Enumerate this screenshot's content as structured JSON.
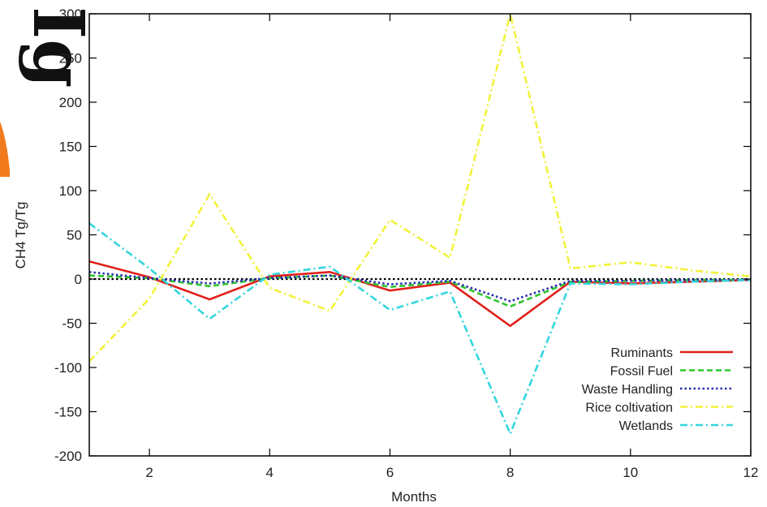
{
  "chart_data": {
    "type": "line",
    "title": "",
    "xlabel": "Months",
    "ylabel": "CH4 Tg/Tg",
    "xlim": [
      1,
      12
    ],
    "ylim": [
      -200,
      300
    ],
    "x_ticks": [
      2,
      4,
      6,
      8,
      10,
      12
    ],
    "y_ticks": [
      -200,
      -150,
      -100,
      -50,
      0,
      50,
      100,
      150,
      200,
      250,
      300
    ],
    "grid": false,
    "legend_position": "bottom-right",
    "x": [
      1,
      2,
      3,
      4,
      5,
      6,
      7,
      8,
      9,
      10,
      11,
      12
    ],
    "series": [
      {
        "name": "Ruminants",
        "color": "#e0201b",
        "dash": "solid",
        "values": [
          20,
          2,
          -23,
          3,
          8,
          -13,
          -4,
          -53,
          -3,
          -5,
          -3,
          -1
        ]
      },
      {
        "name": "Fossil Fuel",
        "color": "#2ec52e",
        "dash": "dashed",
        "values": [
          4,
          1,
          -8,
          1,
          4,
          -9,
          -3,
          -31,
          -3,
          -2,
          -1,
          -1
        ]
      },
      {
        "name": "Waste Handling",
        "color": "#2b2bb0",
        "dash": "dotted",
        "values": [
          8,
          1,
          -5,
          1,
          4,
          -6,
          -2,
          -25,
          -2,
          -2,
          -1,
          -1
        ]
      },
      {
        "name": "Rice coltivation",
        "color": "#f2f23a",
        "dash": "dashdot",
        "values": [
          -93,
          -22,
          96,
          -10,
          -36,
          67,
          24,
          300,
          12,
          19,
          10,
          3
        ]
      },
      {
        "name": "Wetlands",
        "color": "#33d6dd",
        "dash": "dashdot",
        "values": [
          63,
          12,
          -45,
          5,
          14,
          -35,
          -14,
          -175,
          -5,
          -6,
          -3,
          -1
        ]
      }
    ],
    "reference_line": {
      "value": 0,
      "color": "#000000",
      "dash": "dotted"
    }
  },
  "edge_glyph": {
    "text": "Ig",
    "accent_color": "#f07a1c"
  }
}
